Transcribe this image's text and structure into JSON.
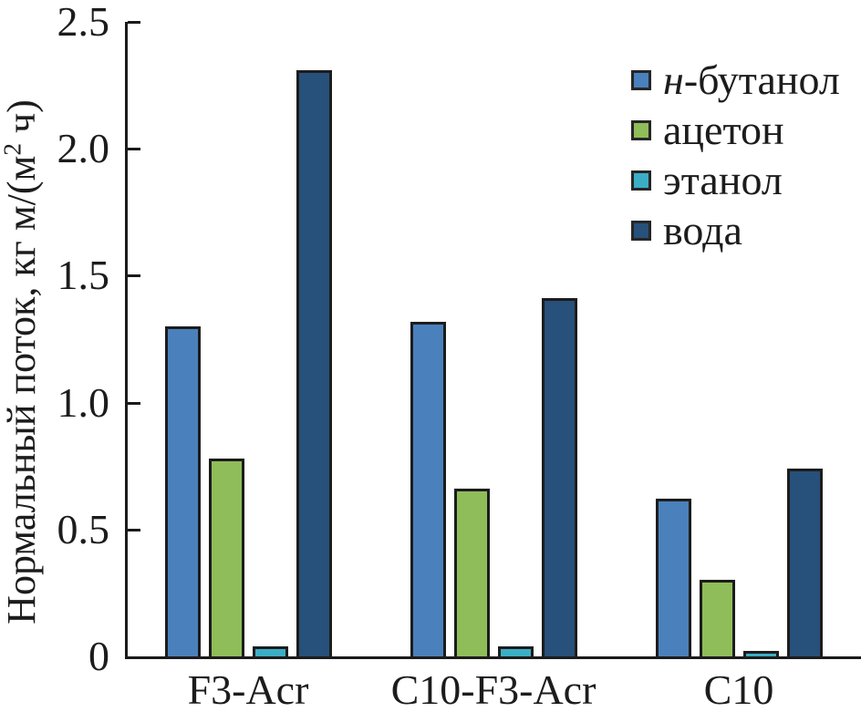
{
  "chart_data": {
    "type": "bar",
    "title": "",
    "ylabel": "Нормальный поток, кг м/(м² ч)",
    "ylabel_parts": {
      "pre": "Нормальный поток, кг м/(м",
      "sup": "2",
      "post": " ч)"
    },
    "categories": [
      "F3-Acr",
      "C10-F3-Acr",
      "C10"
    ],
    "series": [
      {
        "name": "н-бутанол",
        "name_italic_prefix": "н",
        "name_rest": "-бутанол",
        "color": "#4A80BC",
        "values": [
          1.3,
          1.32,
          0.62
        ]
      },
      {
        "name": "ацетон",
        "name_italic_prefix": "",
        "name_rest": "ацетон",
        "color": "#8FBD59",
        "values": [
          0.78,
          0.66,
          0.3
        ]
      },
      {
        "name": "этанол",
        "name_italic_prefix": "",
        "name_rest": "этанол",
        "color": "#3BAEC6",
        "values": [
          0.04,
          0.04,
          0.02
        ]
      },
      {
        "name": "вода",
        "name_italic_prefix": "",
        "name_rest": "вода",
        "color": "#27507A",
        "values": [
          2.31,
          1.41,
          0.74
        ]
      }
    ],
    "ylim": [
      0,
      2.5
    ],
    "yticks": [
      {
        "value": 0,
        "label": "0"
      },
      {
        "value": 0.5,
        "label": "0.5"
      },
      {
        "value": 1.0,
        "label": "1.0"
      },
      {
        "value": 1.5,
        "label": "1.5"
      },
      {
        "value": 2.0,
        "label": "2.0"
      },
      {
        "value": 2.5,
        "label": "2.5"
      }
    ],
    "xlabel": "",
    "legend_position": "top-right",
    "grid": false,
    "colors": {
      "axis": "#1a1a1a",
      "bar_border": "#1c1c1c",
      "text": "#1c1c1c",
      "background": "#ffffff"
    }
  }
}
